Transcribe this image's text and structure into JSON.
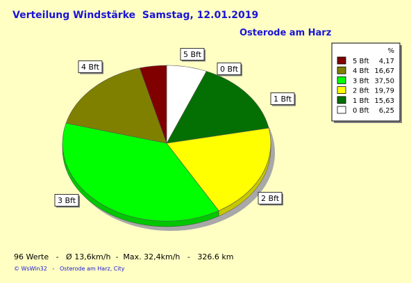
{
  "header": {
    "title": "Verteilung Windstärke  Samstag, 12.01.2019",
    "location": "Osterode am Harz"
  },
  "footer": {
    "stats": "96 Werte   -   Ø 13,6km/h  -  Max. 32,4km/h   -   326.6 km",
    "credit": "© WsWin32   -   Osterode am Harz, City"
  },
  "chart_data": {
    "type": "pie",
    "legend_header": "%",
    "legend_position": "top-right",
    "slices": [
      {
        "label": "0 Bft",
        "value": 6.25,
        "value_text": "6,25",
        "color": "#ffffff"
      },
      {
        "label": "1 Bft",
        "value": 15.63,
        "value_text": "15,63",
        "color": "#047004"
      },
      {
        "label": "2 Bft",
        "value": 19.79,
        "value_text": "19,79",
        "color": "#ffff00"
      },
      {
        "label": "3 Bft",
        "value": 37.5,
        "value_text": "37,50",
        "color": "#00ff00"
      },
      {
        "label": "4 Bft",
        "value": 16.67,
        "value_text": "16,67",
        "color": "#808000"
      },
      {
        "label": "5 Bft",
        "value": 4.17,
        "value_text": "4,17",
        "color": "#800000"
      }
    ],
    "legend_order": [
      "5 Bft",
      "4 Bft",
      "3 Bft",
      "2 Bft",
      "1 Bft",
      "0 Bft"
    ]
  }
}
